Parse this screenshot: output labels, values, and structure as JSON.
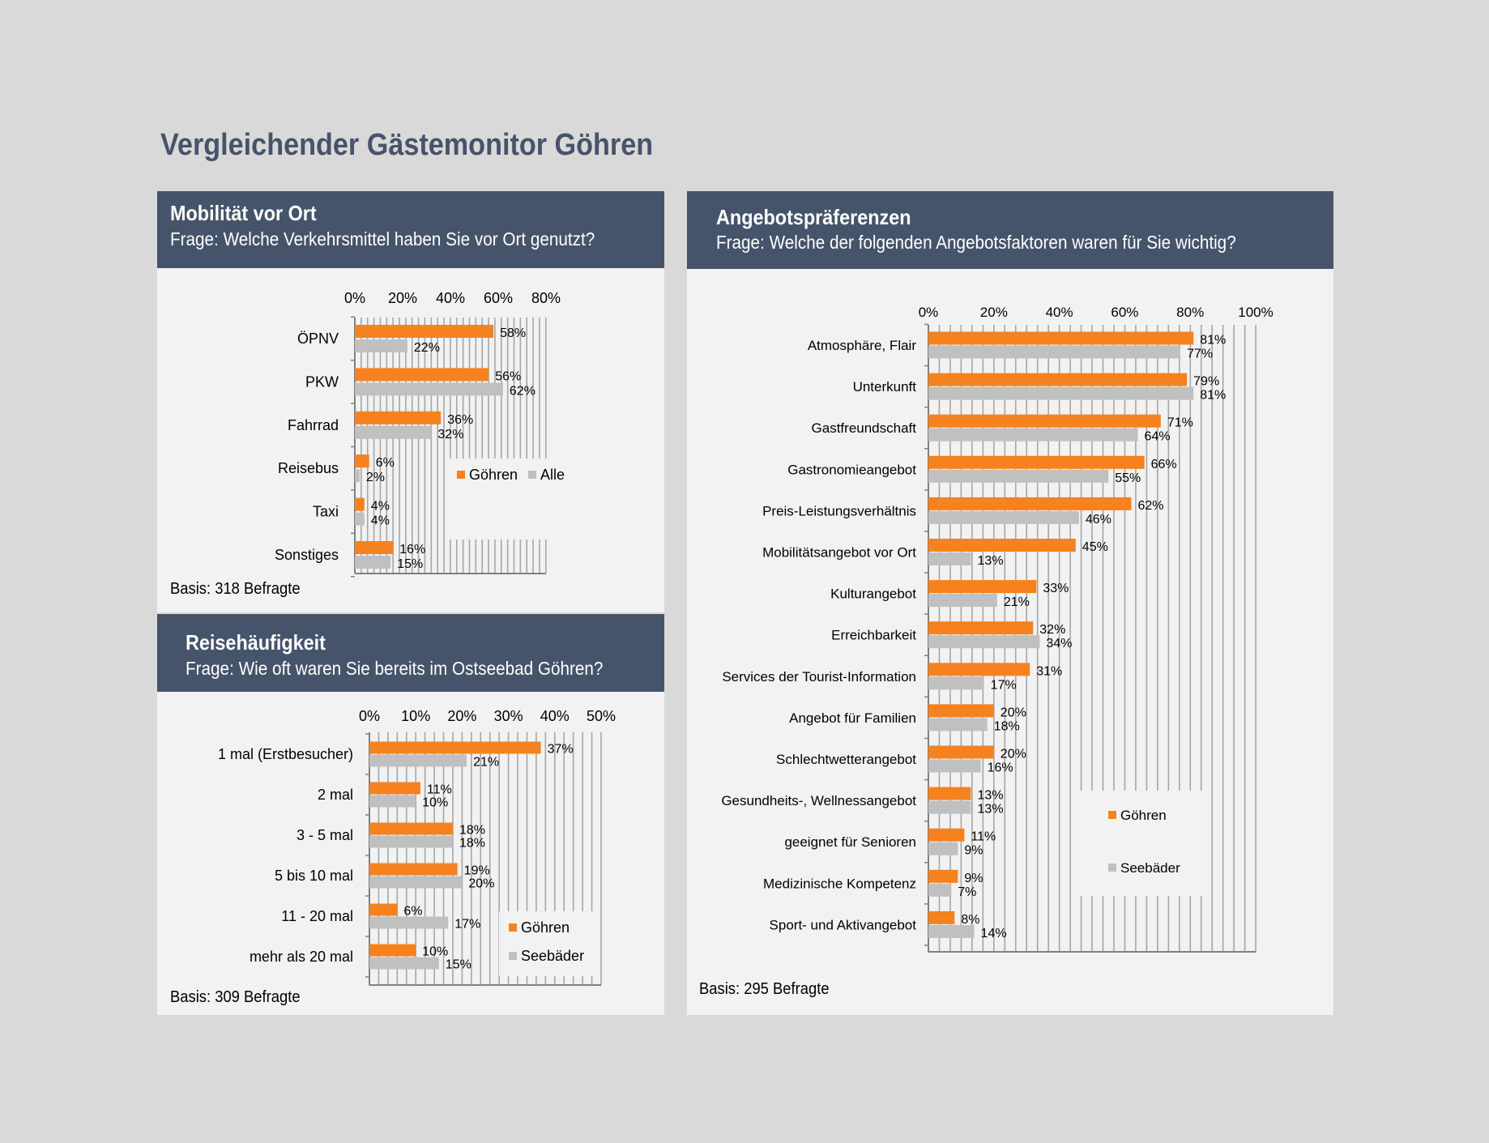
{
  "page_title": "Vergleichender Gästemonitor  Göhren",
  "colors": {
    "header_bg": "#45546a",
    "panel_bg": "#f2f2f2",
    "orange": "#f5821f",
    "gray": "#c0c0c0"
  },
  "panels": {
    "mobilitaet": {
      "title": "Mobilität vor Ort",
      "question": "Frage: Welche Verkehrsmittel haben Sie vor Ort  genutzt?",
      "basis": "Basis: 318  Befragte"
    },
    "reise": {
      "title": "Reisehäufigkeit",
      "question": "Frage: Wie oft waren Sie bereits im Ostseebad Göhren?",
      "basis": "Basis: 309  Befragte"
    },
    "angebot": {
      "title": "Angebotspräferenzen",
      "question": "Frage: Welche der folgenden Angebotsfaktoren  waren für Sie   wichtig?",
      "basis": "Basis: 295  Befragte"
    }
  },
  "chart_data": [
    {
      "id": "mobilitaet",
      "type": "bar",
      "orientation": "horizontal",
      "categories": [
        "ÖPNV",
        "PKW",
        "Fahrrad",
        "Reisebus",
        "Taxi",
        "Sonstiges"
      ],
      "series": [
        {
          "name": "Göhren",
          "color": "#f5821f",
          "values": [
            58,
            56,
            36,
            6,
            4,
            16
          ]
        },
        {
          "name": "Alle",
          "color": "#c0c0c0",
          "values": [
            22,
            62,
            32,
            2,
            4,
            15
          ]
        }
      ],
      "xlim": [
        0,
        80
      ],
      "ticks": [
        "0%",
        "20%",
        "40%",
        "60%",
        "80%"
      ],
      "legend": "inside-right",
      "grid": true
    },
    {
      "id": "reise",
      "type": "bar",
      "orientation": "horizontal",
      "categories": [
        "1 mal (Erstbesucher)",
        "2 mal",
        "3 - 5 mal",
        "5 bis 10 mal",
        "11 - 20 mal",
        "mehr als 20 mal"
      ],
      "series": [
        {
          "name": "Göhren",
          "color": "#f5821f",
          "values": [
            37,
            11,
            18,
            19,
            6,
            10
          ]
        },
        {
          "name": "Seebäder",
          "color": "#c0c0c0",
          "values": [
            21,
            10,
            18,
            20,
            17,
            15
          ]
        }
      ],
      "xlim": [
        0,
        50
      ],
      "ticks": [
        "0%",
        "10%",
        "20%",
        "30%",
        "40%",
        "50%"
      ],
      "legend": "inside-bottom-right",
      "grid": true
    },
    {
      "id": "angebot",
      "type": "bar",
      "orientation": "horizontal",
      "categories": [
        "Atmosphäre, Flair",
        "Unterkunft",
        "Gastfreundschaft",
        "Gastronomieangebot",
        "Preis-Leistungsverhältnis",
        "Mobilitätsangebot vor Ort",
        "Kulturangebot",
        "Erreichbarkeit",
        "Services der Tourist-Information",
        "Angebot für Familien",
        "Schlechtwetterangebot",
        "Gesundheits-, Wellnessangebot",
        "geeignet für Senioren",
        "Medizinische Kompetenz",
        "Sport- und Aktivangebot"
      ],
      "series": [
        {
          "name": "Göhren",
          "color": "#f5821f",
          "values": [
            81,
            79,
            71,
            66,
            62,
            45,
            33,
            32,
            31,
            20,
            20,
            13,
            11,
            9,
            8
          ]
        },
        {
          "name": "Seebäder",
          "color": "#c0c0c0",
          "values": [
            77,
            81,
            64,
            55,
            46,
            13,
            21,
            34,
            17,
            18,
            16,
            13,
            9,
            7,
            14
          ]
        }
      ],
      "xlim": [
        0,
        100
      ],
      "ticks": [
        "0%",
        "20%",
        "40%",
        "60%",
        "80%",
        "100%"
      ],
      "legend": "inside-bottom-right",
      "grid": true
    }
  ]
}
